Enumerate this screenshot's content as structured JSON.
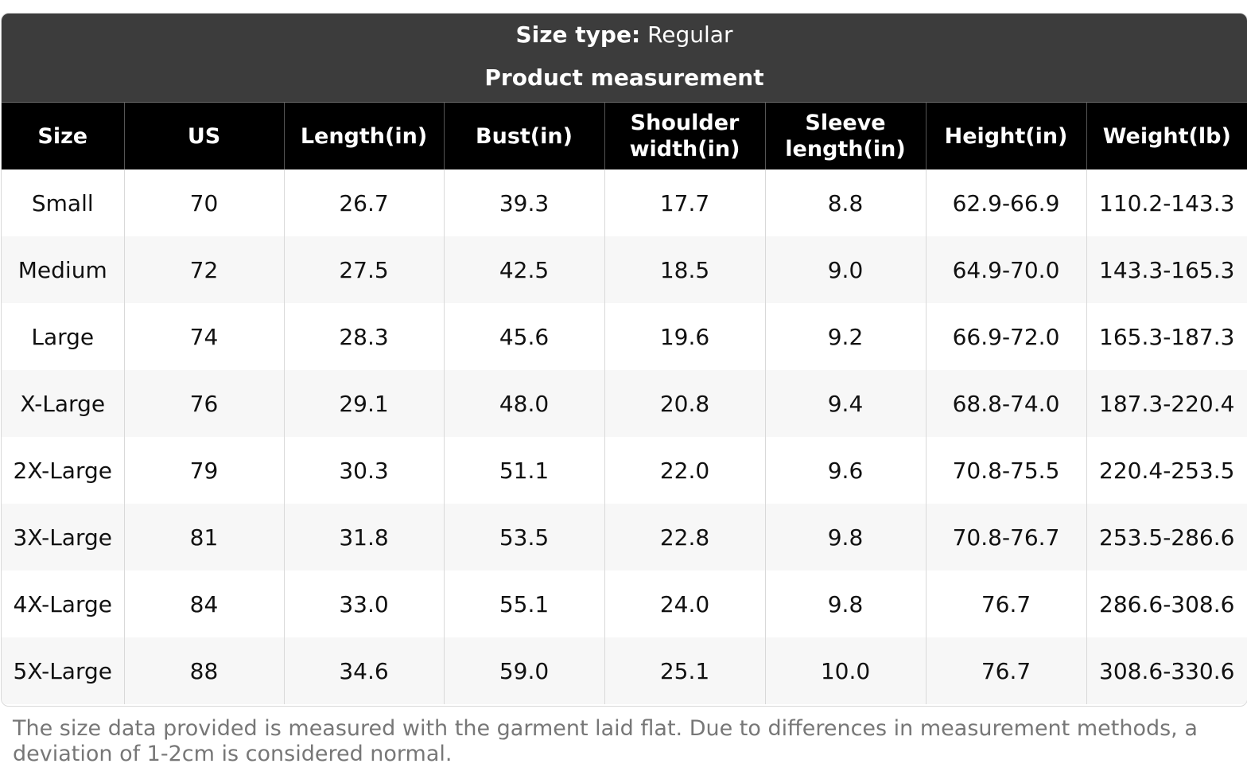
{
  "banner": {
    "size_type_label": "Size type:",
    "size_type_value": "Regular",
    "title": "Product measurement"
  },
  "table": {
    "headers": [
      [
        "Size"
      ],
      [
        "US"
      ],
      [
        "Length(in)"
      ],
      [
        "Bust(in)"
      ],
      [
        "Shoulder",
        "width(in)"
      ],
      [
        "Sleeve",
        "length(in)"
      ],
      [
        "Height(in)"
      ],
      [
        "Weight(lb)"
      ]
    ],
    "rows": [
      [
        "Small",
        "70",
        "26.7",
        "39.3",
        "17.7",
        "8.8",
        "62.9-66.9",
        "110.2-143.3"
      ],
      [
        "Medium",
        "72",
        "27.5",
        "42.5",
        "18.5",
        "9.0",
        "64.9-70.0",
        "143.3-165.3"
      ],
      [
        "Large",
        "74",
        "28.3",
        "45.6",
        "19.6",
        "9.2",
        "66.9-72.0",
        "165.3-187.3"
      ],
      [
        "X-Large",
        "76",
        "29.1",
        "48.0",
        "20.8",
        "9.4",
        "68.8-74.0",
        "187.3-220.4"
      ],
      [
        "2X-Large",
        "79",
        "30.3",
        "51.1",
        "22.0",
        "9.6",
        "70.8-75.5",
        "220.4-253.5"
      ],
      [
        "3X-Large",
        "81",
        "31.8",
        "53.5",
        "22.8",
        "9.8",
        "70.8-76.7",
        "253.5-286.6"
      ],
      [
        "4X-Large",
        "84",
        "33.0",
        "55.1",
        "24.0",
        "9.8",
        "76.7",
        "286.6-308.6"
      ],
      [
        "5X-Large",
        "88",
        "34.6",
        "59.0",
        "25.1",
        "10.0",
        "76.7",
        "308.6-330.6"
      ]
    ]
  },
  "footnote": "The size data provided is measured with the garment laid flat. Due to differences in measurement methods, a deviation of 1-2cm is considered normal."
}
